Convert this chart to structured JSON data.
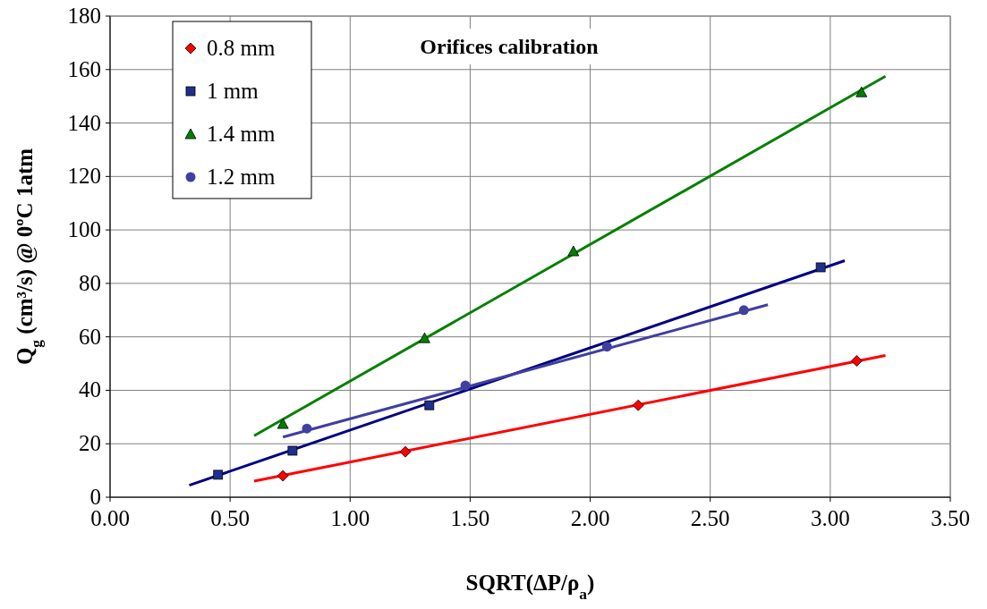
{
  "chart_data": {
    "type": "scatter",
    "title": "Orifices calibration",
    "xlabel": "SQRT(ΔP/ρ$_{a}$)",
    "ylabel": "Q$_{g}$ (cm³/s) @ 0ºC 1atm",
    "xlim": [
      0,
      3.5
    ],
    "xticks": [
      {
        "value": 0,
        "label": "0.00"
      },
      {
        "value": 0.5,
        "label": "0.50"
      },
      {
        "value": 1,
        "label": "1.00"
      },
      {
        "value": 1.5,
        "label": "1.50"
      },
      {
        "value": 2,
        "label": "2.00"
      },
      {
        "value": 2.5,
        "label": "2.50"
      },
      {
        "value": 3,
        "label": "3.00"
      },
      {
        "value": 3.5,
        "label": "3.50"
      }
    ],
    "ylim": [
      0,
      180
    ],
    "yticks": [
      0,
      20,
      40,
      60,
      80,
      100,
      120,
      140,
      160,
      180
    ],
    "grid": true,
    "legend": "top left",
    "series": [
      {
        "name": "0.8 mm",
        "marker": "diamond",
        "color": "#ff0000",
        "x": [
          0.72,
          1.23,
          2.2,
          3.11
        ],
        "values": [
          8,
          17,
          34.4,
          51
        ]
      },
      {
        "name": "1 mm",
        "marker": "square",
        "color": "#1f2f8f",
        "x": [
          0.45,
          0.76,
          1.33,
          2.96
        ],
        "values": [
          8.4,
          17.4,
          34.4,
          86
        ]
      },
      {
        "name": "1.4 mm",
        "marker": "triangle",
        "color": "#008000",
        "x": [
          0.72,
          1.31,
          1.93,
          3.13
        ],
        "values": [
          27.4,
          59.5,
          92,
          151.5
        ]
      },
      {
        "name": "1.2 mm",
        "marker": "circle",
        "color": "#4040a0",
        "x": [
          0.82,
          1.48,
          2.07,
          2.64
        ],
        "values": [
          25.7,
          41.8,
          56.3,
          70
        ]
      },
      {
        "type": "line",
        "marker": "none",
        "color": "#ff0000",
        "x": [
          0.6,
          3.23
        ],
        "values": [
          6,
          53
        ]
      },
      {
        "type": "line",
        "marker": "none",
        "color": "#000080",
        "x": [
          0.33,
          3.06
        ],
        "values": [
          4.5,
          88.5
        ]
      },
      {
        "type": "line",
        "marker": "none",
        "color": "#008000",
        "x": [
          0.6,
          3.23
        ],
        "values": [
          23,
          157.5
        ]
      },
      {
        "type": "line",
        "marker": "none",
        "color": "#3f3f9f",
        "x": [
          0.72,
          2.74
        ],
        "values": [
          22.5,
          72
        ]
      }
    ]
  }
}
